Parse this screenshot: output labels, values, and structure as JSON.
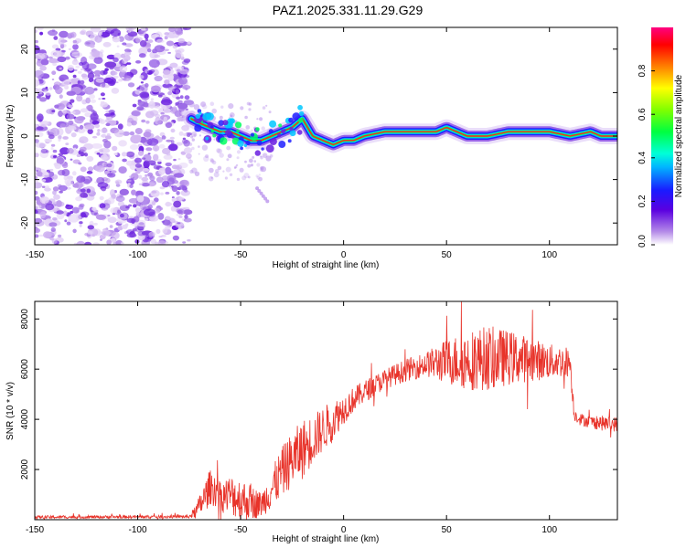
{
  "figure": {
    "title": "PAZ1.2025.331.11.29.G29"
  },
  "chart_data": [
    {
      "type": "heatmap",
      "name": "spectrogram",
      "xlabel": "Height of straight line (km)",
      "ylabel": "Frequency (Hz)",
      "xlim": [
        -150,
        133
      ],
      "ylim": [
        -25,
        25
      ],
      "xticks": [
        -150,
        -100,
        -50,
        0,
        50,
        100
      ],
      "yticks": [
        -20,
        -10,
        0,
        10,
        20
      ],
      "noise_region_x": [
        -150,
        -75
      ],
      "signal_ridge": {
        "x": [
          -74,
          -70,
          -65,
          -60,
          -55,
          -50,
          -45,
          -40,
          -35,
          -30,
          -25,
          -20,
          -15,
          -10,
          -5,
          0,
          5,
          10,
          20,
          30,
          40,
          45,
          50,
          55,
          60,
          70,
          80,
          90,
          100,
          110,
          120,
          125,
          133
        ],
        "freq": [
          4,
          3,
          2,
          1,
          1,
          0,
          -1,
          -1,
          0,
          1,
          2,
          4,
          0,
          -1,
          -2,
          -1,
          -1,
          0,
          1,
          1,
          1,
          1,
          2,
          1,
          0,
          0,
          1,
          1,
          1,
          0,
          1,
          0,
          0
        ]
      },
      "colorbar": {
        "label": "Normalized spectral amplitude",
        "ticks": [
          "0.0",
          "0.2",
          "0.4",
          "0.6",
          "0.8"
        ],
        "range": [
          0,
          1
        ]
      }
    },
    {
      "type": "line",
      "name": "snr",
      "xlabel": "Height of straight line (km)",
      "ylabel": "SNR (10 * v/v)",
      "xlim": [
        -150,
        133
      ],
      "ylim": [
        0,
        8700
      ],
      "xticks": [
        -150,
        -100,
        -50,
        0,
        50,
        100
      ],
      "yticks": [
        2000,
        4000,
        6000,
        8000
      ],
      "color": "#e8332a",
      "envelope": {
        "x": [
          -150,
          -75,
          -72,
          -68,
          -65,
          -62,
          -60,
          -55,
          -50,
          -45,
          -40,
          -35,
          -30,
          -25,
          -20,
          -15,
          -10,
          -5,
          0,
          5,
          10,
          20,
          30,
          40,
          50,
          60,
          70,
          80,
          90,
          100,
          110,
          112,
          115,
          120,
          125,
          133
        ],
        "mean": [
          100,
          120,
          300,
          800,
          1300,
          1200,
          900,
          1000,
          800,
          700,
          600,
          1200,
          1900,
          2400,
          2800,
          3200,
          3600,
          4000,
          4400,
          4800,
          5100,
          5600,
          5950,
          6200,
          6300,
          6350,
          6450,
          6450,
          6400,
          6300,
          6300,
          4200,
          4000,
          3900,
          3850,
          3800
        ],
        "amp": [
          60,
          60,
          250,
          600,
          700,
          700,
          600,
          800,
          900,
          700,
          500,
          800,
          1000,
          1100,
          1200,
          1000,
          900,
          800,
          600,
          500,
          450,
          400,
          450,
          500,
          900,
          1200,
          1300,
          1100,
          900,
          700,
          600,
          250,
          250,
          250,
          300,
          300
        ]
      }
    }
  ]
}
